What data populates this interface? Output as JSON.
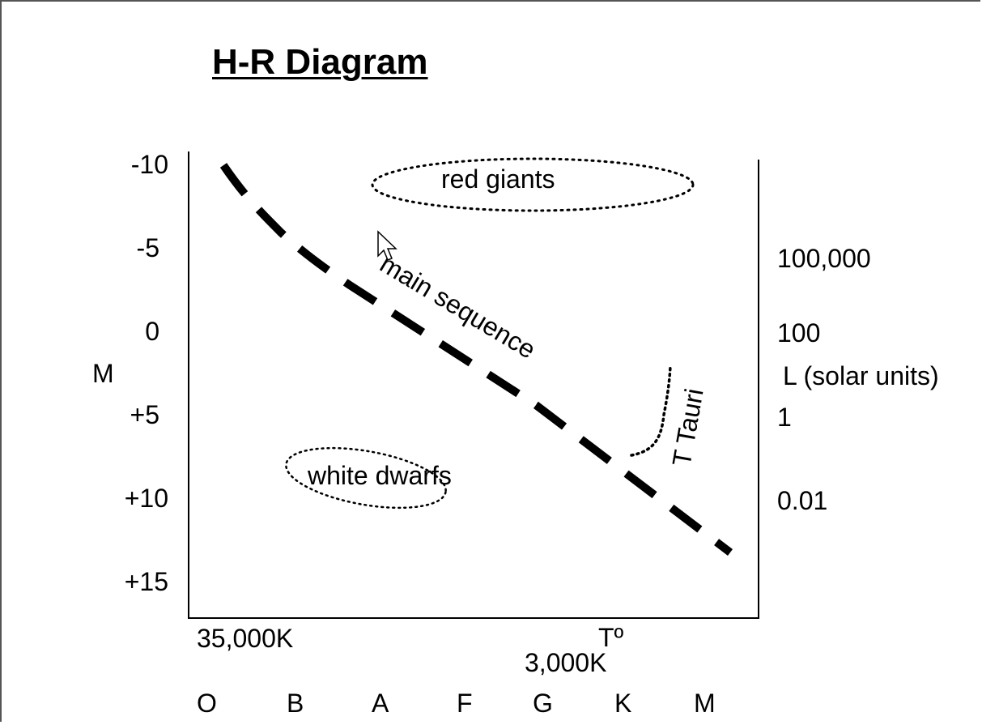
{
  "title": "H-R Diagram",
  "left_axis": {
    "label": "M",
    "ticks": [
      "-10",
      "-5",
      "0",
      "+5",
      "+10",
      "+15"
    ]
  },
  "right_axis": {
    "label": "L (solar units)",
    "ticks": [
      "100,000",
      "100",
      "1",
      "0.01"
    ]
  },
  "bottom_axis": {
    "temp_hot": "35,000K",
    "temp_label": "Tº",
    "temp_cool": "3,000K",
    "spectral_classes": [
      "O",
      "B",
      "A",
      "F",
      "G",
      "K",
      "M"
    ]
  },
  "regions": {
    "red_giants": "red giants",
    "main_sequence": "main sequence",
    "white_dwarfs": "white dwarfs",
    "t_tauri": "T Tauri"
  }
}
